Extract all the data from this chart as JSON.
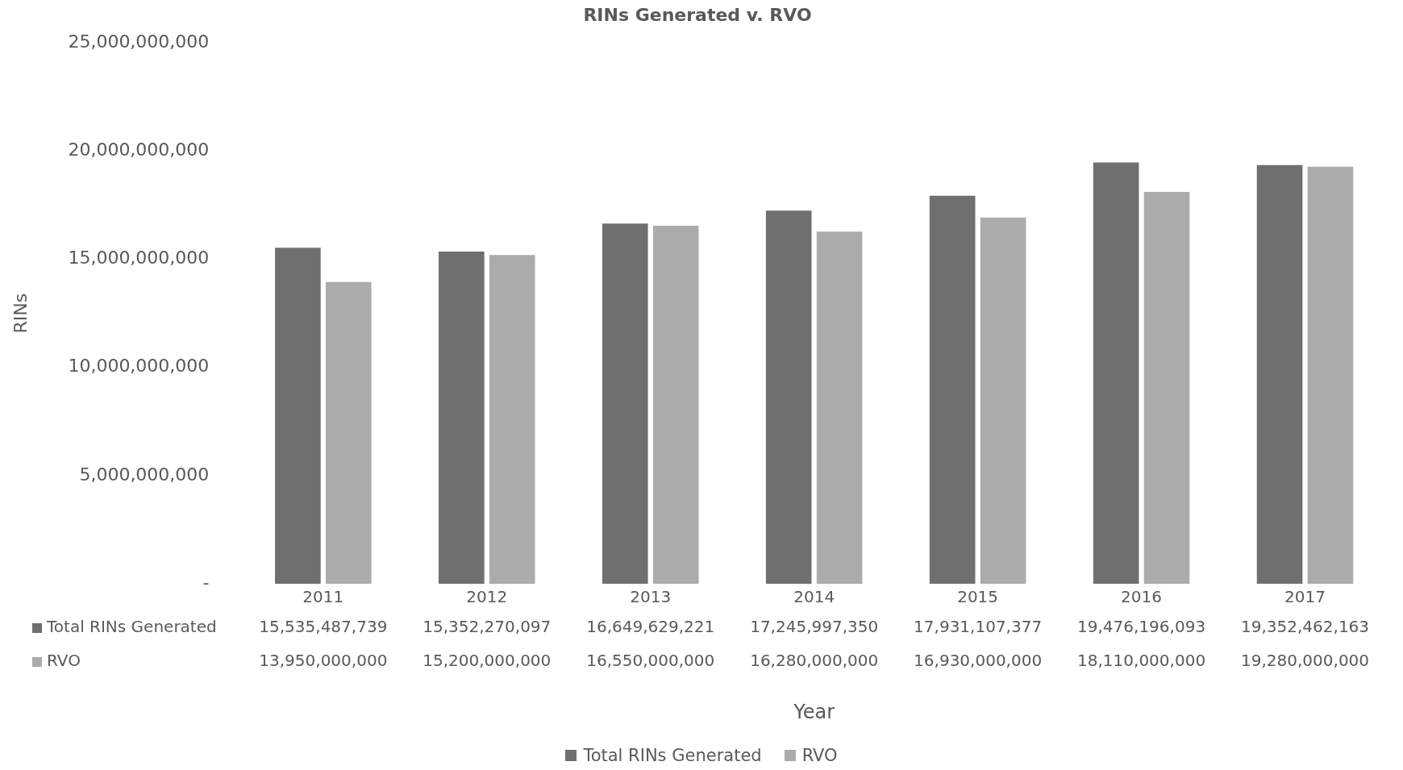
{
  "chart_data": {
    "type": "bar",
    "title": "RINs Generated v. RVO",
    "ylabel": "RINs",
    "annotations": [
      "Year"
    ],
    "categories": [
      "2011",
      "2012",
      "2013",
      "2014",
      "2015",
      "2016",
      "2017"
    ],
    "series": [
      {
        "name": "Total RINs Generated",
        "color": "#6f6f6f",
        "values": [
          15535487739,
          15352270097,
          16649629221,
          17245997350,
          17931107377,
          19476196093,
          19352462163
        ],
        "value_labels": [
          "15,535,487,739",
          "15,352,270,097",
          "16,649,629,221",
          "17,245,997,350",
          "17,931,107,377",
          "19,476,196,093",
          "19,352,462,163"
        ]
      },
      {
        "name": "RVO",
        "color": "#ababab",
        "values": [
          13950000000,
          15200000000,
          16550000000,
          16280000000,
          16930000000,
          18110000000,
          19280000000
        ],
        "value_labels": [
          "13,950,000,000",
          "15,200,000,000",
          "16,550,000,000",
          "16,280,000,000",
          "16,930,000,000",
          "18,110,000,000",
          "19,280,000,000"
        ]
      }
    ],
    "ylim": [
      0,
      25000000000
    ],
    "yticks": [
      {
        "value": 0,
        "label": "-"
      },
      {
        "value": 5000000000,
        "label": "5,000,000,000"
      },
      {
        "value": 10000000000,
        "label": "10,000,000,000"
      },
      {
        "value": 15000000000,
        "label": "15,000,000,000"
      },
      {
        "value": 20000000000,
        "label": "20,000,000,000"
      },
      {
        "value": 25000000000,
        "label": "25,000,000,000"
      }
    ],
    "grid": false,
    "legend": "bottom"
  }
}
